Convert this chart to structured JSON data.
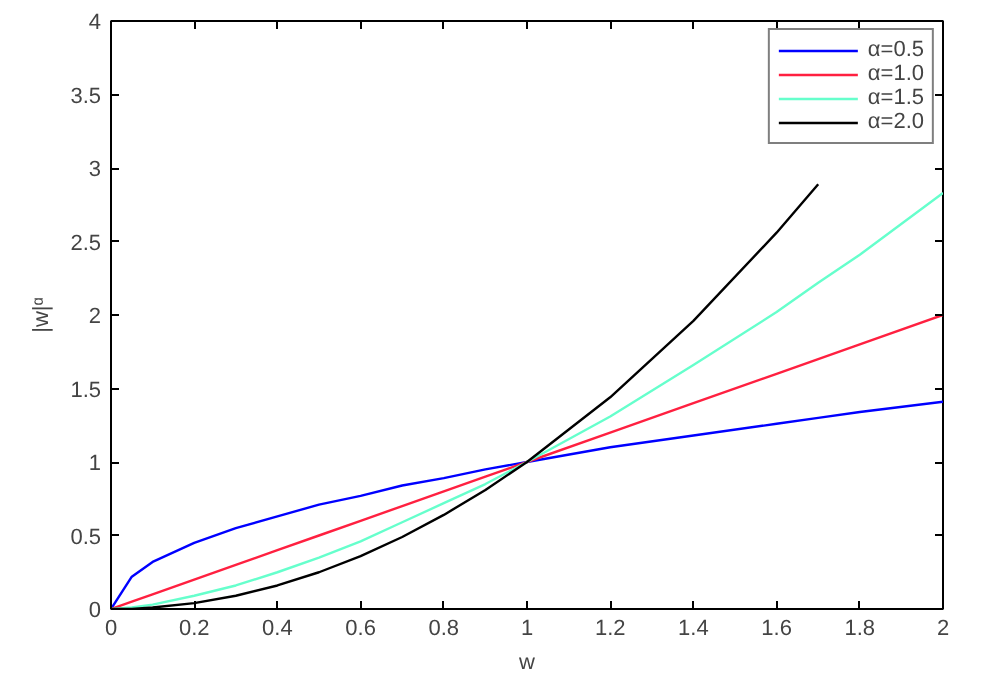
{
  "chart_data": {
    "type": "line",
    "xlabel": "w",
    "ylabel": "|w|ᵅ",
    "x": [
      0,
      0.05,
      0.1,
      0.2,
      0.3,
      0.4,
      0.5,
      0.6,
      0.7,
      0.8,
      0.9,
      1.0,
      1.2,
      1.4,
      1.6,
      1.7,
      1.8,
      2.0
    ],
    "series": [
      {
        "name": "α=0.5",
        "color": "#0000ff",
        "values": [
          0,
          0.22,
          0.32,
          0.45,
          0.55,
          0.63,
          0.71,
          0.77,
          0.84,
          0.89,
          0.95,
          1,
          1.1,
          1.18,
          1.26,
          1.3,
          1.34,
          1.41
        ]
      },
      {
        "name": "α=1.0",
        "color": "#ff2040",
        "values": [
          0,
          0.05,
          0.1,
          0.2,
          0.3,
          0.4,
          0.5,
          0.6,
          0.7,
          0.8,
          0.9,
          1,
          1.2,
          1.4,
          1.6,
          1.7,
          1.8,
          2.0
        ]
      },
      {
        "name": "α=1.5",
        "color": "#66ffcc",
        "values": [
          0,
          0.01,
          0.03,
          0.09,
          0.16,
          0.25,
          0.35,
          0.46,
          0.59,
          0.72,
          0.85,
          1,
          1.31,
          1.66,
          2.02,
          2.22,
          2.41,
          2.83
        ]
      },
      {
        "name": "α=2.0",
        "color": "#000000",
        "values": [
          0,
          0,
          0.01,
          0.04,
          0.09,
          0.16,
          0.25,
          0.36,
          0.49,
          0.64,
          0.81,
          1,
          1.44,
          1.96,
          2.56,
          2.89,
          null,
          null
        ]
      }
    ],
    "xlim": [
      0,
      2
    ],
    "ylim": [
      0,
      4
    ],
    "xticks": [
      0,
      0.2,
      0.4,
      0.6,
      0.8,
      1,
      1.2,
      1.4,
      1.6,
      1.8,
      2
    ],
    "yticks": [
      0,
      0.5,
      1,
      1.5,
      2,
      2.5,
      3,
      3.5,
      4
    ],
    "grid": false,
    "legend": "top right",
    "marker": "none",
    "line_style": "solid"
  }
}
